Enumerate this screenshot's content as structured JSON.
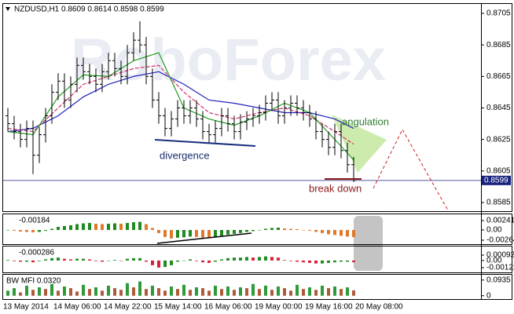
{
  "chart_data": {
    "type": "ohlc",
    "title": "NZDUSD,H1 0.8609 0.8614 0.8598 0.8599",
    "watermark": "RoboForex",
    "bar_color": "#000000",
    "price_line_color": "#1a237e",
    "open": [
      0.864,
      0.8635,
      0.863,
      0.8625,
      0.8632,
      0.8615,
      0.8628,
      0.864,
      0.8655,
      0.8662,
      0.865,
      0.866,
      0.8672,
      0.8668,
      0.8665,
      0.866,
      0.8668,
      0.8675,
      0.867,
      0.8665,
      0.868,
      0.8688,
      0.8685,
      0.8665,
      0.865,
      0.864,
      0.8632,
      0.8638,
      0.8645,
      0.864,
      0.8645,
      0.8638,
      0.863,
      0.8628,
      0.8632,
      0.864,
      0.8635,
      0.863,
      0.8636,
      0.8638,
      0.864,
      0.8642,
      0.8648,
      0.865,
      0.864,
      0.8645,
      0.8648,
      0.8645,
      0.8642,
      0.8638,
      0.863,
      0.8625,
      0.862,
      0.863,
      0.8618,
      0.8609
    ],
    "high": [
      0.8645,
      0.864,
      0.8635,
      0.8637,
      0.8637,
      0.8633,
      0.8645,
      0.866,
      0.8667,
      0.8667,
      0.8665,
      0.8677,
      0.8677,
      0.8673,
      0.867,
      0.8673,
      0.868,
      0.868,
      0.8675,
      0.8685,
      0.8693,
      0.87,
      0.869,
      0.867,
      0.8655,
      0.8645,
      0.8643,
      0.865,
      0.865,
      0.865,
      0.865,
      0.8643,
      0.8635,
      0.8637,
      0.8645,
      0.8645,
      0.864,
      0.8641,
      0.8643,
      0.8645,
      0.8647,
      0.8653,
      0.8655,
      0.8655,
      0.865,
      0.8653,
      0.8653,
      0.865,
      0.8647,
      0.8643,
      0.8635,
      0.863,
      0.8635,
      0.8635,
      0.8623,
      0.8614
    ],
    "low": [
      0.863,
      0.8625,
      0.862,
      0.862,
      0.8603,
      0.861,
      0.8623,
      0.8635,
      0.865,
      0.8645,
      0.8645,
      0.8655,
      0.8663,
      0.866,
      0.8655,
      0.8655,
      0.8663,
      0.8665,
      0.866,
      0.866,
      0.8675,
      0.868,
      0.866,
      0.8645,
      0.8635,
      0.8627,
      0.8627,
      0.8633,
      0.8635,
      0.8635,
      0.8633,
      0.8625,
      0.8623,
      0.8623,
      0.8627,
      0.863,
      0.8625,
      0.8625,
      0.8631,
      0.8633,
      0.8635,
      0.8637,
      0.8643,
      0.8635,
      0.8635,
      0.864,
      0.864,
      0.8637,
      0.8633,
      0.8625,
      0.862,
      0.8615,
      0.8615,
      0.8613,
      0.8604,
      0.8598
    ],
    "close": [
      0.8635,
      0.863,
      0.8625,
      0.8632,
      0.8615,
      0.8628,
      0.864,
      0.8655,
      0.8662,
      0.865,
      0.866,
      0.8672,
      0.8668,
      0.8665,
      0.866,
      0.8668,
      0.8675,
      0.867,
      0.8665,
      0.868,
      0.8688,
      0.8685,
      0.8665,
      0.865,
      0.864,
      0.8632,
      0.8638,
      0.8645,
      0.864,
      0.8645,
      0.8638,
      0.863,
      0.8628,
      0.8632,
      0.864,
      0.8635,
      0.863,
      0.8636,
      0.8638,
      0.864,
      0.8642,
      0.8648,
      0.865,
      0.864,
      0.8645,
      0.8648,
      0.8645,
      0.8642,
      0.8638,
      0.863,
      0.8625,
      0.862,
      0.863,
      0.8618,
      0.8609,
      0.8599
    ],
    "ylim": [
      0.8579,
      0.8711
    ],
    "yticks": [
      0.8705,
      0.8685,
      0.8665,
      0.8645,
      0.8625,
      0.8605,
      0.8585
    ],
    "moving_averages": {
      "x": [
        0,
        4,
        8,
        12,
        16,
        20,
        24,
        28,
        32,
        36,
        40,
        44,
        48,
        52,
        55
      ],
      "series": [
        {
          "color": "#1f1fbf",
          "values": [
            0.863,
            0.8632,
            0.864,
            0.8652,
            0.866,
            0.8665,
            0.8668,
            0.866,
            0.865,
            0.8648,
            0.8645,
            0.8642,
            0.8642,
            0.8638,
            0.8632
          ]
        },
        {
          "color": "#d0306a",
          "values": [
            0.8632,
            0.863,
            0.8645,
            0.866,
            0.8665,
            0.867,
            0.8672,
            0.8655,
            0.8642,
            0.8638,
            0.8642,
            0.8645,
            0.864,
            0.863,
            0.8622
          ]
        },
        {
          "color": "#1f9a1f",
          "values": [
            0.863,
            0.8628,
            0.8652,
            0.8666,
            0.8665,
            0.8675,
            0.868,
            0.8645,
            0.8638,
            0.8634,
            0.864,
            0.8648,
            0.8642,
            0.8625,
            0.8612
          ]
        }
      ]
    },
    "annotations": {
      "divergence": "divergence",
      "angulation": "angulation",
      "break_down": "break down"
    },
    "time_labels": [
      "13 May 2014",
      "14 May 06:00",
      "14 May 22:00",
      "15 May 14:00",
      "16 May 06:00",
      "19 May 00:00",
      "19 May 16:00",
      "20 May 08:00"
    ],
    "indicators": [
      {
        "type": "histogram",
        "label": "-0.00184",
        "colors": [
          "#1f8a1f",
          "#e0782a"
        ],
        "ylim": [
          -0.00365,
          0.00403
        ],
        "yticks": [
          0.00241,
          {
            "value": 0,
            "label": "0.00"
          },
          -0.00264
        ],
        "values": [
          0.0,
          -0.0002,
          -0.0004,
          -0.0005,
          -0.0006,
          -0.0005,
          -0.0002,
          0.0003,
          0.0008,
          0.001,
          0.0012,
          0.0015,
          0.0017,
          0.0018,
          0.0016,
          0.0015,
          0.0016,
          0.0017,
          0.0016,
          0.0018,
          0.002,
          0.0021,
          0.0015,
          0.0005,
          -0.0008,
          -0.0018,
          -0.0022,
          -0.002,
          -0.0019,
          -0.0017,
          -0.0018,
          -0.002,
          -0.0021,
          -0.0019,
          -0.0015,
          -0.0012,
          -0.001,
          -0.0008,
          -0.0005,
          -0.0003,
          0.0,
          0.0003,
          0.0005,
          0.0006,
          0.0004,
          0.0003,
          0.0002,
          0.0,
          -0.0002,
          -0.0005,
          -0.0008,
          -0.0011,
          -0.0013,
          -0.0015,
          -0.0017,
          -0.00184
        ]
      },
      {
        "type": "histogram",
        "label": "-0.000286",
        "colors": [
          "#1f8a1f",
          "#d8203a"
        ],
        "ylim": [
          -0.00202,
          0.00239
        ],
        "yticks": [
          0.00092,
          {
            "value": 0,
            "label": "0.00"
          },
          -0.00122
        ],
        "values": [
          0.0001,
          -0.0001,
          -0.0002,
          -0.0002,
          -0.0003,
          -0.0001,
          0.0002,
          0.0004,
          0.0005,
          0.0003,
          0.0002,
          0.0003,
          0.0003,
          0.0002,
          -0.0001,
          -0.0002,
          0.0,
          0.0001,
          0.0,
          0.0003,
          0.0004,
          0.0004,
          -0.0002,
          -0.0008,
          -0.0012,
          -0.0011,
          -0.0008,
          -0.0002,
          0.0,
          0.0002,
          -0.0001,
          -0.0003,
          -0.0004,
          -0.0002,
          0.0002,
          0.0004,
          0.0005,
          0.0005,
          0.0006,
          0.0005,
          0.0006,
          0.0007,
          0.0006,
          0.0005,
          0.0001,
          -0.0001,
          -0.0002,
          -0.0003,
          -0.0004,
          -0.0005,
          -0.0005,
          -0.0004,
          -0.0003,
          -0.0002,
          -0.0002,
          -0.000286
        ]
      },
      {
        "type": "histogram",
        "label": "BW MFI 0.0320",
        "colors": [
          "#2e9a3a",
          "#b05a3a"
        ],
        "ylim": [
          -0.02,
          0.125
        ],
        "yticks": [
          0.0935,
          0
        ],
        "values": [
          0.03,
          0.045,
          0.02,
          0.06,
          0.035,
          0.05,
          0.04,
          0.07,
          0.03,
          0.055,
          0.045,
          0.025,
          0.065,
          0.04,
          0.05,
          0.03,
          0.06,
          0.045,
          0.035,
          0.075,
          0.05,
          0.085,
          0.04,
          0.06,
          0.045,
          0.03,
          0.055,
          0.04,
          0.065,
          0.035,
          0.05,
          0.045,
          0.03,
          0.06,
          0.04,
          0.055,
          0.035,
          0.05,
          0.045,
          0.07,
          0.04,
          0.06,
          0.035,
          0.055,
          0.045,
          0.03,
          0.065,
          0.04,
          0.05,
          0.035,
          0.06,
          0.045,
          0.055,
          0.04,
          0.05,
          0.032
        ]
      }
    ]
  }
}
